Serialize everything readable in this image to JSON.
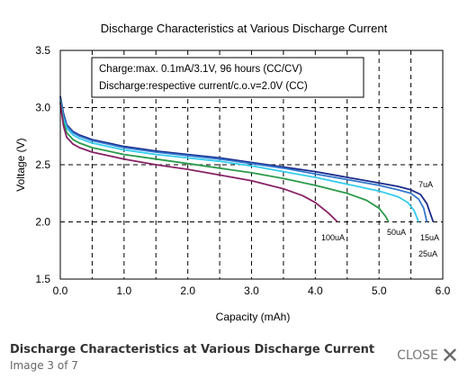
{
  "chart_data": {
    "type": "line",
    "title": "Discharge Characteristics at Various Discharge Current",
    "xlabel": "Capacity  (mAh)",
    "ylabel": "Voltage  (V)",
    "xlim": [
      0,
      6.0
    ],
    "ylim": [
      1.5,
      3.5
    ],
    "x_ticks": [
      "0.0",
      "1.0",
      "2.0",
      "3.0",
      "4.0",
      "5.0",
      "6.0"
    ],
    "y_ticks": [
      "1.5",
      "2.0",
      "2.5",
      "3.0",
      "3.5"
    ],
    "grid": true,
    "annotation": {
      "line1": "Charge:max. 0.1mA/3.1V, 96 hours  (CC/CV)",
      "line2": "Discharge:respective current/c.o.v=2.0V  (CC)"
    },
    "series": [
      {
        "name": "7uA",
        "color": "#1a2a8a",
        "points": [
          [
            0,
            3.1
          ],
          [
            0.05,
            2.95
          ],
          [
            0.1,
            2.85
          ],
          [
            0.2,
            2.79
          ],
          [
            0.3,
            2.76
          ],
          [
            0.5,
            2.72
          ],
          [
            1.0,
            2.66
          ],
          [
            1.5,
            2.62
          ],
          [
            2.0,
            2.59
          ],
          [
            2.5,
            2.56
          ],
          [
            3.0,
            2.52
          ],
          [
            3.5,
            2.48
          ],
          [
            4.0,
            2.44
          ],
          [
            4.5,
            2.39
          ],
          [
            5.0,
            2.34
          ],
          [
            5.3,
            2.31
          ],
          [
            5.5,
            2.28
          ],
          [
            5.65,
            2.24
          ],
          [
            5.75,
            2.16
          ],
          [
            5.8,
            2.08
          ],
          [
            5.85,
            2.0
          ]
        ]
      },
      {
        "name": "15uA",
        "color": "#3377cc",
        "points": [
          [
            0,
            3.08
          ],
          [
            0.05,
            2.93
          ],
          [
            0.1,
            2.84
          ],
          [
            0.2,
            2.78
          ],
          [
            0.3,
            2.75
          ],
          [
            0.5,
            2.71
          ],
          [
            1.0,
            2.65
          ],
          [
            1.5,
            2.61
          ],
          [
            2.0,
            2.58
          ],
          [
            2.5,
            2.55
          ],
          [
            3.0,
            2.51
          ],
          [
            3.5,
            2.47
          ],
          [
            4.0,
            2.42
          ],
          [
            4.5,
            2.37
          ],
          [
            5.0,
            2.32
          ],
          [
            5.3,
            2.28
          ],
          [
            5.5,
            2.25
          ],
          [
            5.62,
            2.2
          ],
          [
            5.7,
            2.12
          ],
          [
            5.75,
            2.0
          ]
        ]
      },
      {
        "name": "25uA",
        "color": "#33ccee",
        "points": [
          [
            0,
            3.06
          ],
          [
            0.05,
            2.9
          ],
          [
            0.1,
            2.82
          ],
          [
            0.2,
            2.76
          ],
          [
            0.3,
            2.73
          ],
          [
            0.5,
            2.69
          ],
          [
            1.0,
            2.63
          ],
          [
            1.5,
            2.59
          ],
          [
            2.0,
            2.56
          ],
          [
            2.5,
            2.53
          ],
          [
            3.0,
            2.49
          ],
          [
            3.5,
            2.44
          ],
          [
            4.0,
            2.39
          ],
          [
            4.5,
            2.33
          ],
          [
            5.0,
            2.27
          ],
          [
            5.3,
            2.22
          ],
          [
            5.45,
            2.17
          ],
          [
            5.55,
            2.1
          ],
          [
            5.62,
            2.0
          ]
        ]
      },
      {
        "name": "50uA",
        "color": "#2a9a4a",
        "points": [
          [
            0,
            3.05
          ],
          [
            0.05,
            2.87
          ],
          [
            0.1,
            2.78
          ],
          [
            0.2,
            2.72
          ],
          [
            0.3,
            2.69
          ],
          [
            0.5,
            2.65
          ],
          [
            1.0,
            2.59
          ],
          [
            1.5,
            2.55
          ],
          [
            2.0,
            2.51
          ],
          [
            2.5,
            2.47
          ],
          [
            3.0,
            2.43
          ],
          [
            3.5,
            2.38
          ],
          [
            4.0,
            2.32
          ],
          [
            4.5,
            2.25
          ],
          [
            4.8,
            2.19
          ],
          [
            5.0,
            2.12
          ],
          [
            5.1,
            2.05
          ],
          [
            5.15,
            2.0
          ]
        ]
      },
      {
        "name": "100uA",
        "color": "#882266",
        "points": [
          [
            0,
            3.04
          ],
          [
            0.05,
            2.84
          ],
          [
            0.1,
            2.74
          ],
          [
            0.2,
            2.68
          ],
          [
            0.3,
            2.65
          ],
          [
            0.5,
            2.61
          ],
          [
            1.0,
            2.55
          ],
          [
            1.5,
            2.5
          ],
          [
            2.0,
            2.46
          ],
          [
            2.5,
            2.41
          ],
          [
            3.0,
            2.36
          ],
          [
            3.5,
            2.29
          ],
          [
            3.8,
            2.23
          ],
          [
            4.0,
            2.17
          ],
          [
            4.2,
            2.08
          ],
          [
            4.35,
            2.0
          ]
        ]
      }
    ]
  },
  "caption": {
    "title": "Discharge Characteristics at Various Discharge Current",
    "subtitle": "Image 3 of 7"
  },
  "close": {
    "label": "CLOSE"
  }
}
